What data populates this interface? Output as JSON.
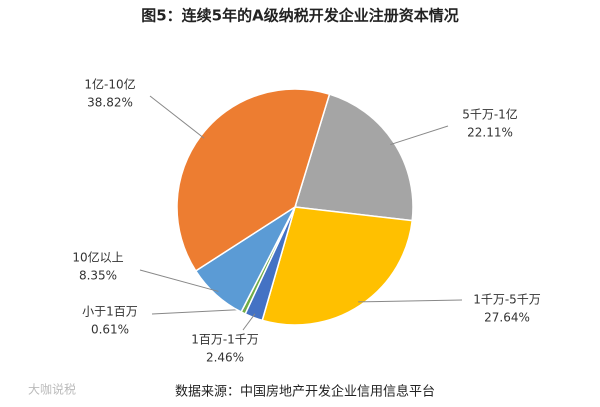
{
  "chart_data": {
    "type": "pie",
    "title": "图5：连续5年的A级纳税开发企业注册资本情况",
    "categories": [
      "5千万-1亿",
      "1千万-5千万",
      "1百万-1千万",
      "小于1百万",
      "10亿以上",
      "1亿-10亿"
    ],
    "values": [
      22.11,
      27.64,
      2.46,
      0.61,
      8.35,
      38.82
    ],
    "value_labels": [
      "22.11%",
      "27.64%",
      "2.46%",
      "0.61%",
      "8.35%",
      "38.82%"
    ],
    "colors": [
      "#a5a5a5",
      "#ffc000",
      "#4472c4",
      "#70ad47",
      "#5b9bd5",
      "#ed7d31"
    ],
    "source": "数据来源：中国房地产开发企业信用信息平台",
    "watermark": "大咖说税"
  }
}
